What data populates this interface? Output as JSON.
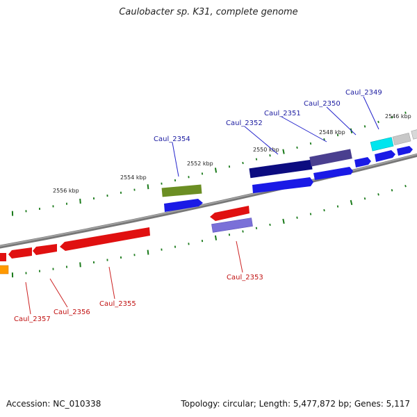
{
  "title": "Caulobacter sp. K31, complete genome",
  "footer": {
    "accession": "Accession: NC_010338",
    "summary": "Topology: circular; Length: 5,477,872 bp; Genes: 5,117"
  },
  "colors": {
    "backbone": "#8a8a8a",
    "tick": "#1a7a1a",
    "label_top": "#1a1aa0",
    "label_bottom": "#c01010",
    "leader_top": "#2222cc",
    "leader_bottom": "#cc2222"
  },
  "ticks": [
    {
      "label": "2546 kbp"
    },
    {
      "label": "2548 kbp"
    },
    {
      "label": "2550 kbp"
    },
    {
      "label": "2552 kbp"
    },
    {
      "label": "2554 kbp"
    },
    {
      "label": "2556 kbp"
    }
  ],
  "genes": [
    {
      "id": "gene-2349",
      "label": "Caul_2349",
      "color": "#00e5ee"
    },
    {
      "id": "gene-2350",
      "label": "Caul_2350",
      "color": "#1a1ae6"
    },
    {
      "id": "gene-2351",
      "label": "Caul_2351",
      "color": "#4a3f8f"
    },
    {
      "id": "gene-2352",
      "label": "Caul_2352",
      "color": "#0c0c80"
    },
    {
      "id": "gene-2354",
      "label": "Caul_2354",
      "color": "#6b8e23"
    },
    {
      "id": "gene-2353",
      "label": "Caul_2353",
      "color": "#e01010"
    },
    {
      "id": "gene-2355",
      "label": "Caul_2355",
      "color": "#e01010"
    },
    {
      "id": "gene-2356",
      "label": "Caul_2356",
      "color": "#e01010"
    },
    {
      "id": "gene-2357",
      "label": "Caul_2357",
      "color": "#e01010"
    }
  ]
}
